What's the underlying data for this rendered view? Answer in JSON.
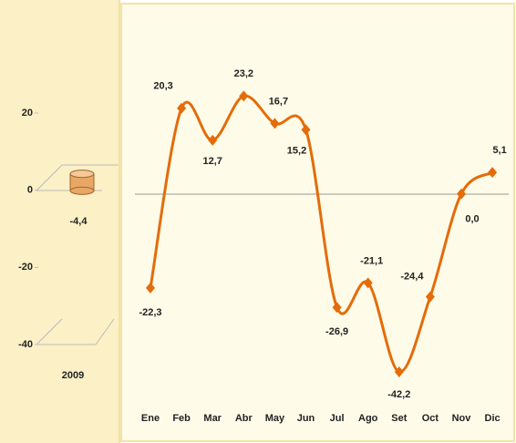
{
  "chart_data": [
    {
      "type": "bar",
      "categories": [
        "2009"
      ],
      "values": [
        -4.4
      ],
      "value_labels": [
        "-4,4"
      ],
      "color": "#e8a765",
      "ylim": [
        -40,
        20
      ],
      "yticks": [
        20,
        0,
        -20,
        -40
      ]
    },
    {
      "type": "line",
      "categories": [
        "Ene",
        "Feb",
        "Mar",
        "Abr",
        "May",
        "Jun",
        "Jul",
        "Ago",
        "Set",
        "Oct",
        "Nov",
        "Dic"
      ],
      "values": [
        -22.3,
        20.3,
        12.7,
        23.2,
        16.7,
        15.2,
        -26.9,
        -21.1,
        -42.2,
        -24.4,
        0.0,
        5.1
      ],
      "value_labels": [
        "-22,3",
        "20,3",
        "12,7",
        "23,2",
        "16,7",
        "15,2",
        "-26,9",
        "-21,1",
        "-42,2",
        "-24,4",
        "0,0",
        "5,1"
      ],
      "color": "#e46c0a",
      "ylim": [
        -45,
        25
      ]
    }
  ]
}
